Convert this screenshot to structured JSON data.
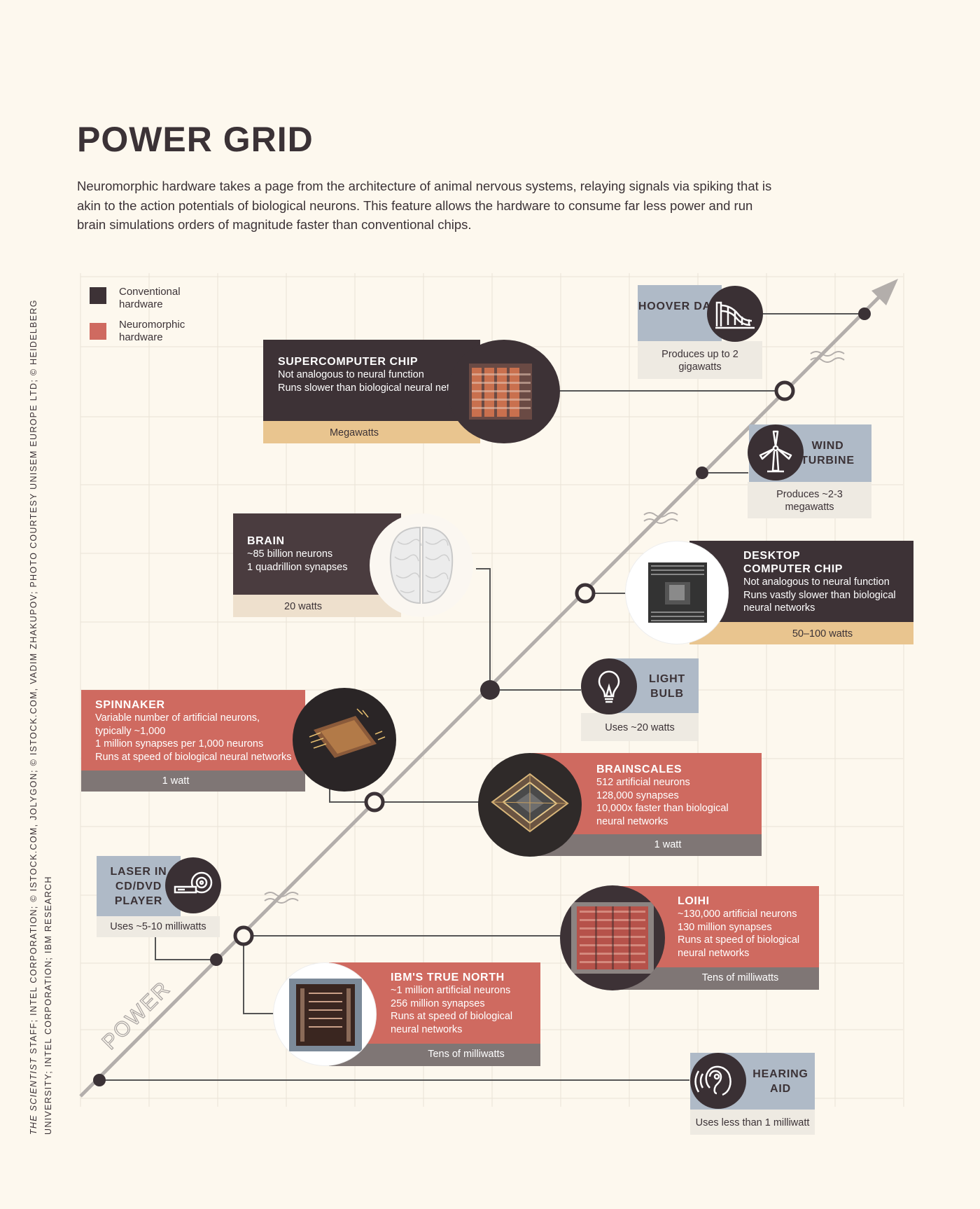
{
  "header": {
    "title": "POWER GRID",
    "intro": "Neuromorphic hardware takes a page from the architecture of animal nervous systems, relaying signals via spiking that is akin to the action potentials of biological neurons. This feature allows the hardware to consume far less power and run brain simulations orders of magnitude faster than conventional chips."
  },
  "credit": {
    "line1_italic": "THE SCIENTIST",
    "line1_rest": " STAFF; INTEL CORPORATION; © ISTOCK.COM, JOLYGON; © ISTOCK.COM, VADIM ZHAKUPOV; PHOTO COURTESY UNISEM EUROPE LTD; © HEIDELBERG",
    "line2": "UNIVERSITY; INTEL CORPORATION; IBM RESEARCH"
  },
  "legend": {
    "conventional": "Conventional hardware",
    "neuromorphic": "Neuromorphic hardware"
  },
  "axis": {
    "label": "POWER"
  },
  "colors": {
    "conventional": "#3d3236",
    "neuromorphic": "#cf6a60",
    "megawatt_band": "#e9c58f",
    "grey_band": "#7f7675",
    "reference_caption": "#afbac7",
    "background": "#fdf8ee"
  },
  "items": {
    "hoover": {
      "title": "HOOVER DAM",
      "note": "Produces up to 2 gigawatts",
      "icon": "dam-icon"
    },
    "supercomputer": {
      "title": "SUPERCOMPUTER CHIP",
      "lines": [
        "Not analogous to neural function",
        "Runs slower than biological neural networks"
      ],
      "power": "Megawatts"
    },
    "wind": {
      "title": "WIND TURBINE",
      "note": "Produces ~2-3 megawatts",
      "icon": "wind-turbine-icon"
    },
    "brain": {
      "title": "BRAIN",
      "lines": [
        "~85 billion neurons",
        "1 quadrillion synapses"
      ],
      "power": "20 watts"
    },
    "desktop": {
      "title": "DESKTOP COMPUTER CHIP",
      "lines": [
        "Not analogous to neural function",
        "Runs vastly slower than biological neural networks"
      ],
      "power": "50–100 watts"
    },
    "bulb": {
      "title": "LIGHT BULB",
      "note": "Uses ~20 watts",
      "icon": "light-bulb-icon"
    },
    "spinnaker": {
      "title": "SPINNAKER",
      "lines": [
        "Variable number of artificial neurons, typically ~1,000",
        "1 million synapses per 1,000 neurons",
        "Runs at speed of biological neural networks"
      ],
      "power": "1 watt"
    },
    "brainscales": {
      "title": "BRAINSCALES",
      "lines": [
        "512 artificial neurons",
        "128,000 synapses",
        "10,000x faster than biological neural networks"
      ],
      "power": "1 watt"
    },
    "laser": {
      "title": "LASER IN CD/DVD PLAYER",
      "note": "Uses ~5-10 milliwatts",
      "icon": "cd-laser-icon"
    },
    "loihi": {
      "title": "LOIHI",
      "lines": [
        "~130,000 artificial neurons",
        "130 million synapses",
        "Runs at speed of biological neural networks"
      ],
      "power": "Tens of milliwatts"
    },
    "truenorth": {
      "title": "IBM'S TRUE NORTH",
      "lines": [
        "~1 million artificial neurons",
        "256 million synapses",
        "Runs at speed of biological neural networks"
      ],
      "power": "Tens of milliwatts"
    },
    "hearing": {
      "title": "HEARING AID",
      "note": "Uses less than 1 milliwatt",
      "icon": "hearing-aid-icon"
    }
  }
}
